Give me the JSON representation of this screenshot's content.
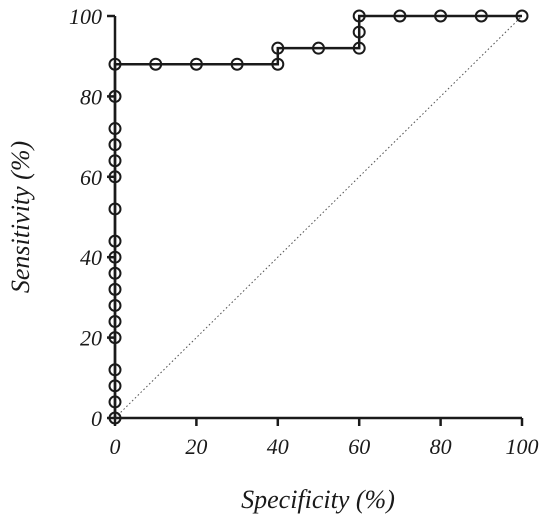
{
  "chart_data": {
    "type": "line",
    "title": "",
    "xlabel": "Specificity (%)",
    "ylabel": "Sensitivity (%)",
    "xlim": [
      0,
      100
    ],
    "ylim": [
      0,
      100
    ],
    "x_ticks": [
      "0",
      "20",
      "40",
      "60",
      "80",
      "100"
    ],
    "y_ticks": [
      "0",
      "20",
      "40",
      "60",
      "80",
      "100"
    ],
    "grid": false,
    "legend": "none",
    "series": [
      {
        "points": [
          [
            0,
            0
          ],
          [
            0,
            4
          ],
          [
            0,
            8
          ],
          [
            0,
            12
          ],
          [
            0,
            20
          ],
          [
            0,
            24
          ],
          [
            0,
            28
          ],
          [
            0,
            32
          ],
          [
            0,
            36
          ],
          [
            0,
            40
          ],
          [
            0,
            44
          ],
          [
            0,
            52
          ],
          [
            0,
            60
          ],
          [
            0,
            64
          ],
          [
            0,
            68
          ],
          [
            0,
            72
          ],
          [
            0,
            80
          ],
          [
            0,
            88
          ],
          [
            10,
            88
          ],
          [
            20,
            88
          ],
          [
            30,
            88
          ],
          [
            40,
            88
          ],
          [
            40,
            92
          ],
          [
            50,
            92
          ],
          [
            60,
            92
          ],
          [
            60,
            96
          ],
          [
            60,
            100
          ],
          [
            70,
            100
          ],
          [
            80,
            100
          ],
          [
            90,
            100
          ],
          [
            100,
            100
          ]
        ],
        "marker": "open-circle",
        "color": "#1a1a1a"
      }
    ],
    "reference_line": {
      "from": [
        0,
        0
      ],
      "to": [
        100,
        100
      ],
      "style": "dotted",
      "color": "#555555"
    }
  }
}
